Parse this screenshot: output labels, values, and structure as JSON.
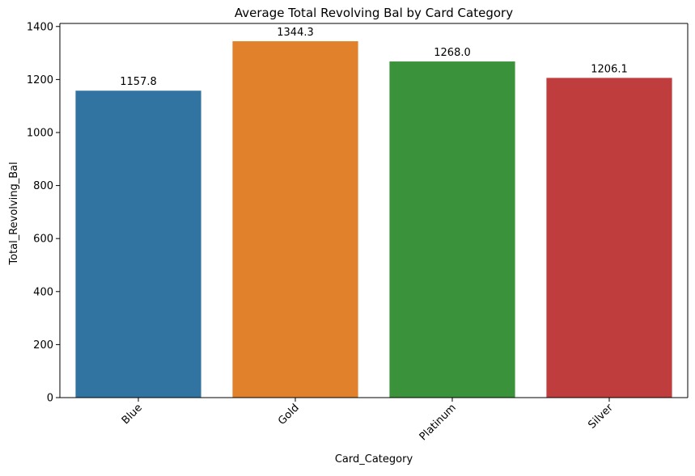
{
  "chart_data": {
    "type": "bar",
    "title": "Average Total Revolving Bal by Card Category",
    "xlabel": "Card_Category",
    "ylabel": "Total_Revolving_Bal",
    "categories": [
      "Blue",
      "Gold",
      "Platinum",
      "Silver"
    ],
    "values": [
      1157.8,
      1344.3,
      1268.0,
      1206.1
    ],
    "data_labels": [
      "1157.8",
      "1344.3",
      "1268.0",
      "1206.1"
    ],
    "colors": [
      "#3274a1",
      "#e1812c",
      "#3a923a",
      "#c03d3e"
    ],
    "ylim": [
      0,
      1411.5
    ],
    "yticks": [
      0,
      200,
      400,
      600,
      800,
      1000,
      1200,
      1400
    ],
    "ytick_labels": [
      "0",
      "200",
      "400",
      "600",
      "800",
      "1000",
      "1200",
      "1400"
    ],
    "grid": false,
    "legend": "none"
  }
}
